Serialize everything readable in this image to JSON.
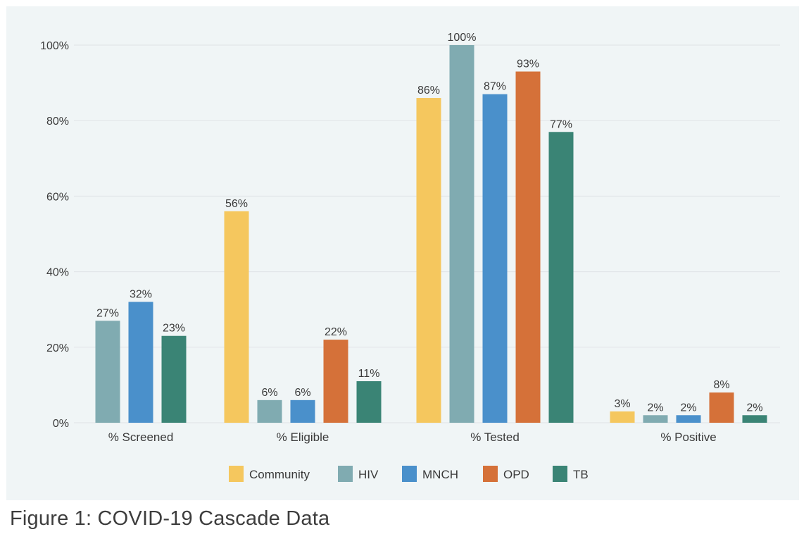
{
  "caption": "Figure 1: COVID-19 Cascade Data",
  "chart_data": {
    "type": "bar",
    "title": "",
    "xlabel": "",
    "ylabel": "",
    "ylim": [
      0,
      100
    ],
    "yticks": [
      0,
      20,
      40,
      60,
      80,
      100
    ],
    "ytick_labels": [
      "0%",
      "20%",
      "40%",
      "60%",
      "80%",
      "100%"
    ],
    "grid": true,
    "legend_position": "bottom-center",
    "categories": [
      "% Screened",
      "% Eligible",
      "% Tested",
      "% Positive"
    ],
    "series": [
      {
        "name": "Community",
        "color": "#f5c75e",
        "values": [
          null,
          56,
          86,
          3
        ],
        "labels": [
          null,
          "56%",
          "86%",
          "3%"
        ]
      },
      {
        "name": "HIV",
        "color": "#80abb1",
        "values": [
          27,
          6,
          100,
          2
        ],
        "labels": [
          "27%",
          "6%",
          "100%",
          "2%"
        ]
      },
      {
        "name": "MNCH",
        "color": "#4a90cb",
        "values": [
          32,
          6,
          87,
          2
        ],
        "labels": [
          "32%",
          "6%",
          "87%",
          "2%"
        ]
      },
      {
        "name": "OPD",
        "color": "#d57139",
        "values": [
          null,
          22,
          93,
          8
        ],
        "labels": [
          null,
          "22%",
          "93%",
          "8%"
        ]
      },
      {
        "name": "TB",
        "color": "#3a8475",
        "values": [
          23,
          11,
          77,
          2
        ],
        "labels": [
          "23%",
          "11%",
          "77%",
          "2%"
        ]
      }
    ]
  }
}
